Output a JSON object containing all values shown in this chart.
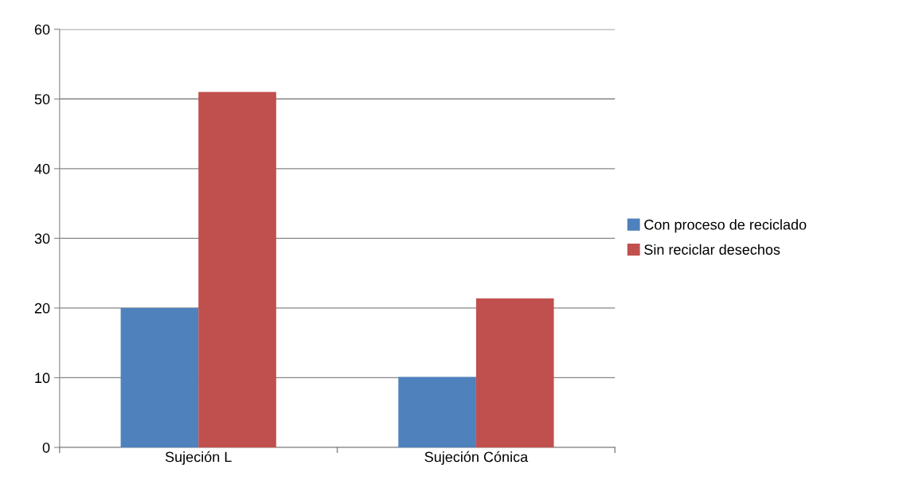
{
  "chart_data": {
    "type": "bar",
    "categories": [
      "Sujeción L",
      "Sujeción Cónica"
    ],
    "series": [
      {
        "name": "Con proceso de reciclado",
        "color": "#4f81bd",
        "values": [
          20,
          10.1
        ]
      },
      {
        "name": "Sin reciclar desechos",
        "color": "#c0504d",
        "values": [
          51,
          21.4
        ]
      }
    ],
    "ylim": [
      0,
      60
    ],
    "yticks": [
      0,
      10,
      20,
      30,
      40,
      50,
      60
    ],
    "grid": "y",
    "legend": "right"
  }
}
